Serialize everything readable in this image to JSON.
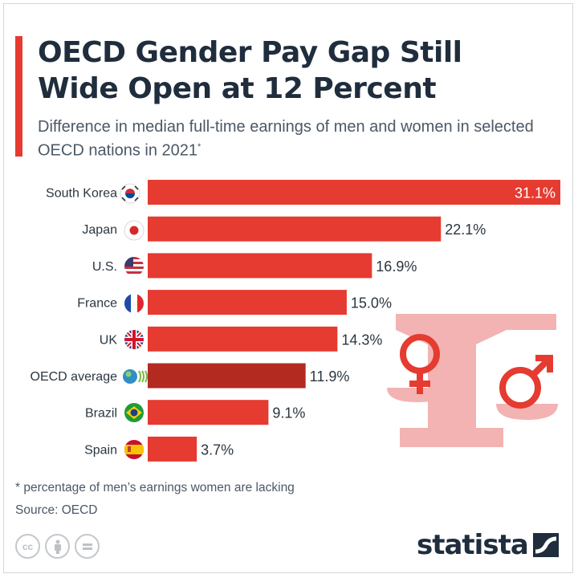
{
  "title": "OECD Gender Pay Gap Still Wide Open at 12 Percent",
  "subtitle": "Difference in median full-time earnings of men and women in selected OECD nations in 2021",
  "subtitle_marker": "*",
  "footnote": "* percentage of men’s earnings women are lacking",
  "source": "Source: OECD",
  "brand": "statista",
  "license_icons": [
    "cc-icon",
    "attribution-icon",
    "no-derivatives-icon"
  ],
  "colors": {
    "bar": "#e53b30",
    "highlight_bar": "#b22a20",
    "title": "#1f2d3d",
    "accent": "#e53b30",
    "illustration": "#f3b3b3"
  },
  "chart_data": {
    "type": "bar",
    "orientation": "horizontal",
    "categories": [
      "South Korea",
      "Japan",
      "U.S.",
      "France",
      "UK",
      "OECD average",
      "Brazil",
      "Spain"
    ],
    "flags": [
      "south-korea-flag-icon",
      "japan-flag-icon",
      "us-flag-icon",
      "france-flag-icon",
      "uk-flag-icon",
      "oecd-logo-icon",
      "brazil-flag-icon",
      "spain-flag-icon"
    ],
    "values": [
      31.1,
      22.1,
      16.9,
      15.0,
      14.3,
      11.9,
      9.1,
      3.7
    ],
    "labels": [
      "31.1%",
      "22.1%",
      "16.9%",
      "15.0%",
      "14.3%",
      "11.9%",
      "9.1%",
      "3.7%"
    ],
    "highlight": "OECD average",
    "xlim": [
      0,
      31.1
    ],
    "grid": false,
    "title": "OECD Gender Pay Gap Still Wide Open at 12 Percent",
    "xlabel": "",
    "ylabel": ""
  }
}
